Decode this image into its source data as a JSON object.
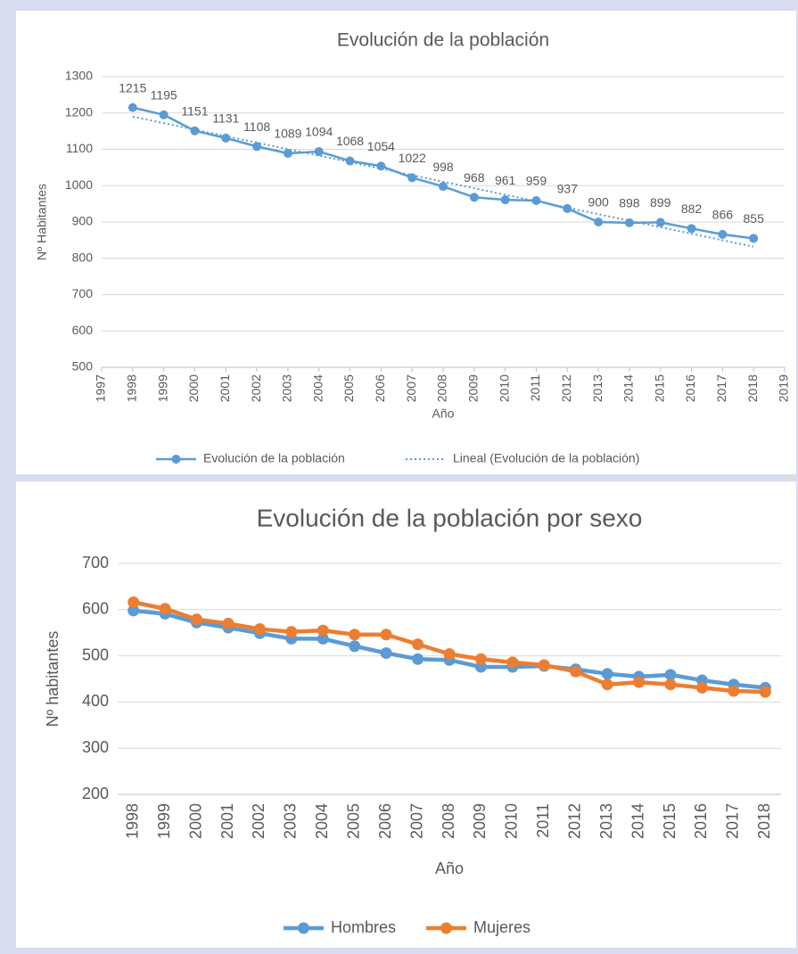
{
  "chart_data": [
    {
      "type": "line",
      "title": "Evolución de la población",
      "x_label": "Año",
      "y_label": "Nº Habitantes",
      "x": [
        1998,
        1999,
        2000,
        2001,
        2002,
        2003,
        2004,
        2005,
        2006,
        2007,
        2008,
        2009,
        2010,
        2011,
        2012,
        2013,
        2014,
        2015,
        2016,
        2017,
        2018
      ],
      "series": [
        {
          "name": "Evolución de la población",
          "color": "#5b9bd5",
          "marker": true,
          "data_labels": true,
          "values": [
            1215,
            1195,
            1151,
            1131,
            1108,
            1089,
            1094,
            1068,
            1054,
            1022,
            998,
            968,
            961,
            959,
            937,
            900,
            898,
            899,
            882,
            866,
            855
          ]
        },
        {
          "name": "Lineal (Evolución de la población)",
          "color": "#5b9bd5",
          "line_style": "dotted",
          "x": [
            1998,
            2018
          ],
          "values": [
            1190,
            832
          ]
        }
      ],
      "xlim": [
        1997,
        2019
      ],
      "xticks": [
        1997,
        1998,
        1999,
        2000,
        2001,
        2002,
        2003,
        2004,
        2005,
        2006,
        2007,
        2008,
        2009,
        2010,
        2011,
        2012,
        2013,
        2014,
        2015,
        2016,
        2017,
        2018,
        2019
      ],
      "ylim": [
        500,
        1300
      ],
      "yticks": [
        500,
        600,
        700,
        800,
        900,
        1000,
        1100,
        1200,
        1300
      ],
      "grid": true,
      "legend": "bottom"
    },
    {
      "type": "line",
      "title": "Evolución de la población por sexo",
      "x_label": "Año",
      "y_label": "Nº habitantes",
      "categories": [
        "1998",
        "1999",
        "2000",
        "2001",
        "2002",
        "2003",
        "2004",
        "2005",
        "2006",
        "2007",
        "2008",
        "2009",
        "2010",
        "2011",
        "2012",
        "2013",
        "2014",
        "2015",
        "2016",
        "2017",
        "2018"
      ],
      "series": [
        {
          "name": "Hombres",
          "color": "#5b9bd5",
          "marker": true,
          "values": [
            598,
            591,
            572,
            561,
            549,
            537,
            537,
            521,
            506,
            493,
            491,
            476,
            476,
            478,
            471,
            461,
            455,
            459,
            447,
            438,
            431
          ]
        },
        {
          "name": "Mujeres",
          "color": "#ed7d31",
          "marker": true,
          "values": [
            616,
            602,
            579,
            570,
            558,
            552,
            555,
            546,
            546,
            525,
            504,
            493,
            486,
            480,
            466,
            438,
            443,
            438,
            431,
            424,
            422
          ]
        }
      ],
      "ylim": [
        200,
        700
      ],
      "yticks": [
        200,
        300,
        400,
        500,
        600,
        700
      ],
      "grid": true,
      "legend": "bottom"
    }
  ]
}
